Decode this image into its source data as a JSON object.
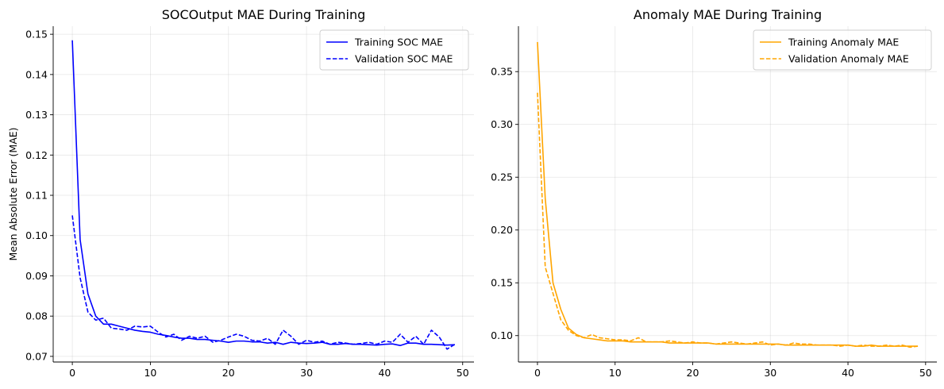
{
  "chart_data": [
    {
      "type": "line",
      "title": "SOCOutput MAE During Training",
      "xlabel": "",
      "ylabel": "Mean Absolute Error (MAE)",
      "xlim": [
        -2.45,
        51.45
      ],
      "ylim": [
        0.0686,
        0.152
      ],
      "xticks": [
        0,
        10,
        20,
        30,
        40,
        50
      ],
      "yticks": [
        0.07,
        0.08,
        0.09,
        0.1,
        0.11,
        0.12,
        0.13,
        0.14,
        0.15
      ],
      "ytick_decimals": 2,
      "grid": true,
      "legend_position": "top-right",
      "series": [
        {
          "name": "Training SOC MAE",
          "color": "#0000ff",
          "dash": "solid",
          "x": [
            0,
            1,
            2,
            3,
            4,
            5,
            6,
            7,
            8,
            9,
            10,
            11,
            12,
            13,
            14,
            15,
            16,
            17,
            18,
            19,
            20,
            21,
            22,
            23,
            24,
            25,
            26,
            27,
            28,
            29,
            30,
            31,
            32,
            33,
            34,
            35,
            36,
            37,
            38,
            39,
            40,
            41,
            42,
            43,
            44,
            45,
            46,
            47,
            48,
            49
          ],
          "values": [
            0.1485,
            0.099,
            0.0855,
            0.08,
            0.078,
            0.078,
            0.0775,
            0.077,
            0.0765,
            0.0762,
            0.076,
            0.0755,
            0.0752,
            0.0748,
            0.0745,
            0.0745,
            0.0742,
            0.0742,
            0.074,
            0.0738,
            0.0735,
            0.0738,
            0.0738,
            0.0736,
            0.0736,
            0.0733,
            0.0735,
            0.073,
            0.0735,
            0.0733,
            0.0732,
            0.0733,
            0.0735,
            0.073,
            0.073,
            0.0732,
            0.073,
            0.073,
            0.0729,
            0.0728,
            0.073,
            0.0731,
            0.0727,
            0.0733,
            0.0733,
            0.073,
            0.073,
            0.0729,
            0.0728,
            0.0729
          ]
        },
        {
          "name": "Validation SOC MAE",
          "color": "#0000ff",
          "dash": "dashed",
          "x": [
            0,
            1,
            2,
            3,
            4,
            5,
            6,
            7,
            8,
            9,
            10,
            11,
            12,
            13,
            14,
            15,
            16,
            17,
            18,
            19,
            20,
            21,
            22,
            23,
            24,
            25,
            26,
            27,
            28,
            29,
            30,
            31,
            32,
            33,
            34,
            35,
            36,
            37,
            38,
            39,
            40,
            41,
            42,
            43,
            44,
            45,
            46,
            47,
            48,
            49
          ],
          "values": [
            0.105,
            0.0895,
            0.081,
            0.079,
            0.0795,
            0.077,
            0.0768,
            0.0765,
            0.0775,
            0.0773,
            0.0775,
            0.076,
            0.0748,
            0.0755,
            0.074,
            0.075,
            0.0745,
            0.075,
            0.0735,
            0.074,
            0.0748,
            0.0755,
            0.075,
            0.074,
            0.0738,
            0.0745,
            0.073,
            0.0765,
            0.075,
            0.073,
            0.074,
            0.0735,
            0.0738,
            0.073,
            0.0735,
            0.0733,
            0.073,
            0.0732,
            0.0735,
            0.073,
            0.0738,
            0.0735,
            0.0755,
            0.0735,
            0.075,
            0.073,
            0.0765,
            0.0748,
            0.0718,
            0.073
          ]
        }
      ]
    },
    {
      "type": "line",
      "title": "Anomaly MAE During Training",
      "xlabel": "",
      "ylabel": "",
      "xlim": [
        -2.45,
        51.45
      ],
      "ylim": [
        0.075,
        0.393
      ],
      "xticks": [
        0,
        10,
        20,
        30,
        40,
        50
      ],
      "yticks": [
        0.1,
        0.15,
        0.2,
        0.25,
        0.3,
        0.35
      ],
      "ytick_decimals": 2,
      "grid": true,
      "legend_position": "top-right",
      "series": [
        {
          "name": "Training Anomaly MAE",
          "color": "#ffa500",
          "dash": "solid",
          "x": [
            0,
            1,
            2,
            3,
            4,
            5,
            6,
            7,
            8,
            9,
            10,
            11,
            12,
            13,
            14,
            15,
            16,
            17,
            18,
            19,
            20,
            21,
            22,
            23,
            24,
            25,
            26,
            27,
            28,
            29,
            30,
            31,
            32,
            33,
            34,
            35,
            36,
            37,
            38,
            39,
            40,
            41,
            42,
            43,
            44,
            45,
            46,
            47,
            48,
            49
          ],
          "values": [
            0.378,
            0.23,
            0.15,
            0.125,
            0.107,
            0.101,
            0.098,
            0.097,
            0.096,
            0.095,
            0.095,
            0.095,
            0.094,
            0.094,
            0.094,
            0.094,
            0.094,
            0.093,
            0.093,
            0.093,
            0.093,
            0.093,
            0.093,
            0.092,
            0.092,
            0.092,
            0.092,
            0.092,
            0.092,
            0.092,
            0.092,
            0.092,
            0.091,
            0.091,
            0.091,
            0.091,
            0.091,
            0.091,
            0.091,
            0.091,
            0.091,
            0.09,
            0.09,
            0.091,
            0.09,
            0.09,
            0.09,
            0.09,
            0.09,
            0.09
          ]
        },
        {
          "name": "Validation Anomaly MAE",
          "color": "#ffa500",
          "dash": "dashed",
          "x": [
            0,
            1,
            2,
            3,
            4,
            5,
            6,
            7,
            8,
            9,
            10,
            11,
            12,
            13,
            14,
            15,
            16,
            17,
            18,
            19,
            20,
            21,
            22,
            23,
            24,
            25,
            26,
            27,
            28,
            29,
            30,
            31,
            32,
            33,
            34,
            35,
            36,
            37,
            38,
            39,
            40,
            41,
            42,
            43,
            44,
            45,
            46,
            47,
            48,
            49
          ],
          "values": [
            0.33,
            0.165,
            0.14,
            0.115,
            0.105,
            0.1,
            0.098,
            0.101,
            0.098,
            0.097,
            0.096,
            0.096,
            0.095,
            0.098,
            0.094,
            0.094,
            0.094,
            0.095,
            0.094,
            0.093,
            0.094,
            0.093,
            0.093,
            0.092,
            0.093,
            0.094,
            0.093,
            0.092,
            0.093,
            0.094,
            0.091,
            0.092,
            0.091,
            0.093,
            0.092,
            0.092,
            0.091,
            0.091,
            0.091,
            0.09,
            0.091,
            0.09,
            0.091,
            0.09,
            0.09,
            0.091,
            0.09,
            0.091,
            0.089,
            0.09
          ]
        }
      ]
    }
  ]
}
